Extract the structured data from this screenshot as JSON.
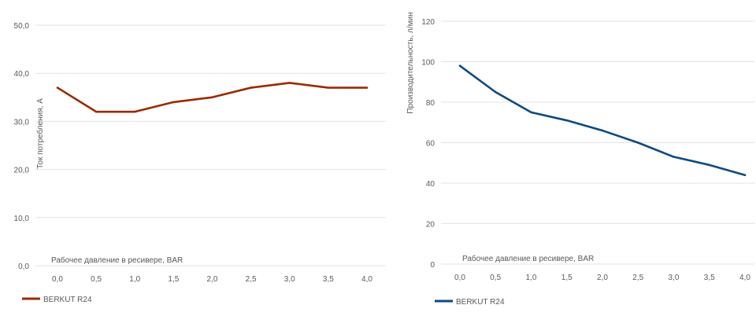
{
  "chart_data": [
    {
      "type": "line",
      "title": "",
      "xlabel": "Рабочее давление  в ресивере, BAR",
      "ylabel": "Ток потребления, А",
      "categories": [
        "0,0",
        "0,5",
        "1,0",
        "1,5",
        "2,0",
        "2,5",
        "3,0",
        "3,5",
        "4,0"
      ],
      "yticks": [
        "0,0",
        "10,0",
        "20,0",
        "30,0",
        "40,0",
        "50,0"
      ],
      "ylim": [
        0,
        50
      ],
      "grid": true,
      "legend_position": "bottom-left",
      "series": [
        {
          "name": "BERKUT R24",
          "color": "#9a2a00",
          "values": [
            37,
            32,
            32,
            34,
            35,
            37,
            38,
            37,
            37
          ]
        }
      ]
    },
    {
      "type": "line",
      "title": "",
      "xlabel": "Рабочее давление  в ресивере, BAR",
      "ylabel": "Производительность, л/мин",
      "categories": [
        "0,0",
        "0,5",
        "1,0",
        "1,5",
        "2,0",
        "2,5",
        "3,0",
        "3,5",
        "4,0"
      ],
      "yticks": [
        "0",
        "20",
        "40",
        "60",
        "80",
        "100",
        "120"
      ],
      "ylim": [
        0,
        120
      ],
      "grid": true,
      "legend_position": "bottom-left",
      "series": [
        {
          "name": "BERKUT R24",
          "color": "#0d4a80",
          "values": [
            98,
            85,
            75,
            71,
            66,
            60,
            53,
            49,
            44
          ]
        }
      ]
    }
  ]
}
